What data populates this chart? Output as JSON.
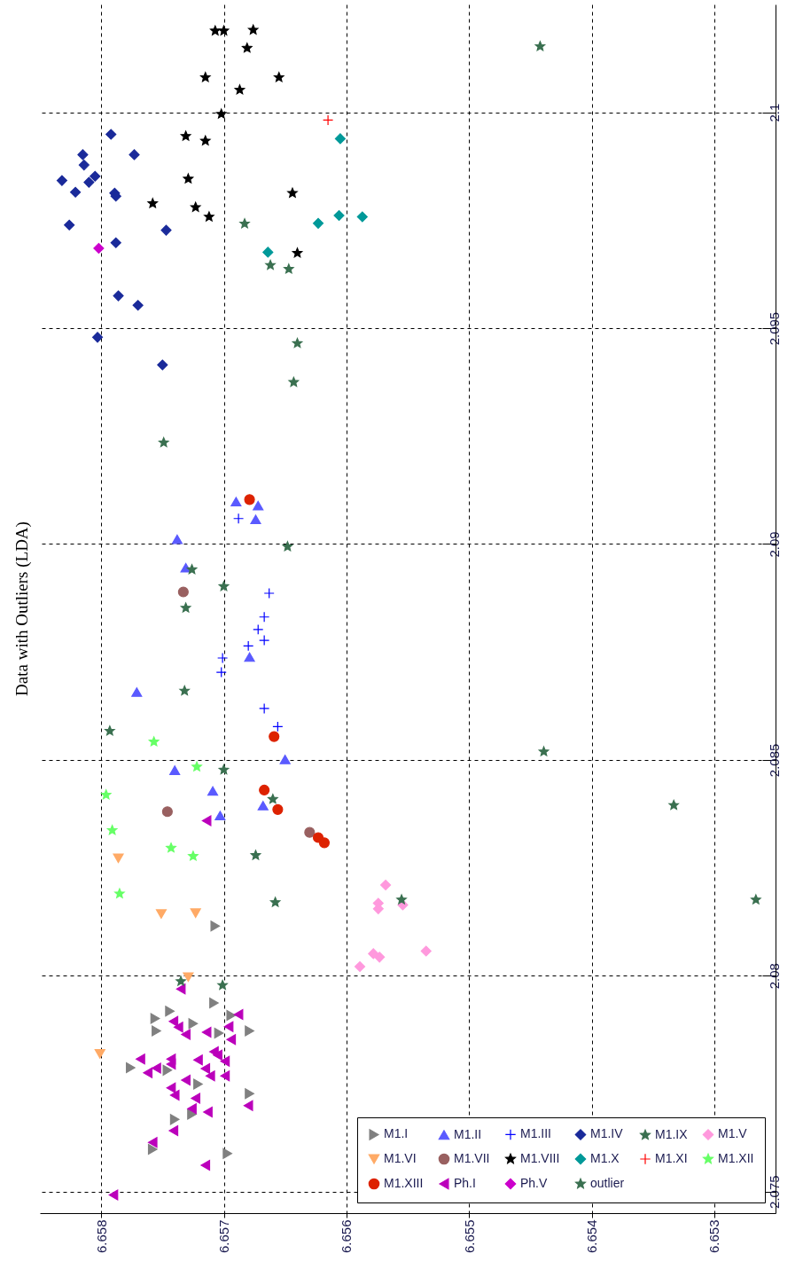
{
  "chart_data": {
    "type": "scatter",
    "title": "Data with Outliers (LDA)",
    "xlim": [
      6.6585,
      6.6525
    ],
    "xticks": [
      6.658,
      6.657,
      6.656,
      6.655,
      6.654,
      6.653
    ],
    "ylim": [
      2.0745,
      2.1025
    ],
    "yticks": [
      2.075,
      2.08,
      2.085,
      2.09,
      2.095,
      2.1
    ],
    "grid": true,
    "legend": "bottom right",
    "series": [
      {
        "name": "M1.I",
        "color": "#808080",
        "marker": "triangle-right",
        "values": [
          2.08115,
          2.07937,
          2.07918,
          2.07901,
          2.07872,
          2.07889,
          2.07908,
          2.07872,
          2.07867,
          2.07787,
          2.07781,
          2.07749,
          2.07727,
          2.07667,
          2.07679,
          2.07598,
          2.07588
        ],
        "x": [
          6.65707,
          6.65708,
          6.65744,
          6.65756,
          6.65755,
          6.65725,
          6.65694,
          6.65679,
          6.65704,
          6.65776,
          6.65746,
          6.65721,
          6.65679,
          6.6574,
          6.65726,
          6.65758,
          6.65697
        ]
      },
      {
        "name": "M1.II",
        "color": "#5a5aff",
        "marker": "triangle",
        "values": [
          2.09098,
          2.09089,
          2.09057,
          2.09011,
          2.08945,
          2.08738,
          2.08657,
          2.08501,
          2.08476,
          2.08428,
          2.08394,
          2.08371
        ],
        "x": [
          6.6569,
          6.65672,
          6.65674,
          6.65738,
          6.65731,
          6.65679,
          6.65771,
          6.6565,
          6.6574,
          6.65709,
          6.65668,
          6.65703
        ]
      },
      {
        "name": "M1.III",
        "color": "#0000ff",
        "marker": "cross",
        "values": [
          2.09059,
          2.08886,
          2.08831,
          2.08802,
          2.08777,
          2.08764,
          2.08736,
          2.08703,
          2.08619,
          2.08577
        ],
        "x": [
          6.65688,
          6.65663,
          6.65667,
          6.65672,
          6.65667,
          6.6568,
          6.65701,
          6.65702,
          6.65667,
          6.65656
        ]
      },
      {
        "name": "M1.IV",
        "color": "#1a2a9a",
        "marker": "diamond",
        "values": [
          2.09949,
          2.09902,
          2.09902,
          2.09878,
          2.09842,
          2.09838,
          2.09852,
          2.09815,
          2.09813,
          2.09806,
          2.09739,
          2.09727,
          2.09698,
          2.09575,
          2.09553,
          2.09479,
          2.09415
        ],
        "x": [
          6.65792,
          6.65815,
          6.65773,
          6.65814,
          6.65832,
          6.6581,
          6.65805,
          6.65821,
          6.65789,
          6.65788,
          6.65826,
          6.65747,
          6.65788,
          6.65786,
          6.6577,
          6.65803,
          6.6575
        ]
      },
      {
        "name": "M1.IX",
        "color": "#3a7050",
        "marker": "star",
        "values": [
          2.09637
        ],
        "x": [
          6.65647
        ]
      },
      {
        "name": "M1.V",
        "color": "#ff99dd",
        "marker": "diamond",
        "values": [
          2.0821,
          2.08168,
          2.08155,
          2.08164,
          2.08051,
          2.08043,
          2.08021,
          2.08057
        ],
        "x": [
          6.65568,
          6.65574,
          6.65574,
          6.65554,
          6.65578,
          6.65573,
          6.65589,
          6.65535
        ]
      },
      {
        "name": "M1.VI",
        "color": "#ffaa66",
        "marker": "triangle-down",
        "values": [
          2.08272,
          2.08143,
          2.08145,
          2.07997,
          2.07819
        ],
        "x": [
          6.65786,
          6.65751,
          6.65723,
          6.65729,
          6.65801
        ]
      },
      {
        "name": "M1.VII",
        "color": "#996060",
        "marker": "circle",
        "values": [
          2.08889,
          2.0838,
          2.08332
        ],
        "x": [
          6.65733,
          6.65746,
          6.6563
        ]
      },
      {
        "name": "M1.VIII",
        "color": "#000000",
        "marker": "star",
        "values": [
          2.10189,
          2.10189,
          2.10191,
          2.10149,
          2.10081,
          2.10081,
          2.10052,
          2.09996,
          2.09945,
          2.09934,
          2.09846,
          2.09813,
          2.09789,
          2.0978,
          2.09758,
          2.09674
        ],
        "x": [
          6.65707,
          6.657,
          6.65676,
          6.65681,
          6.65715,
          6.65655,
          6.65687,
          6.65702,
          6.65731,
          6.65715,
          6.65729,
          6.65644,
          6.65758,
          6.65723,
          6.65712,
          6.6564
        ]
      },
      {
        "name": "M1.X",
        "color": "#009999",
        "marker": "diamond",
        "values": [
          2.09939,
          2.09743,
          2.09761,
          2.09758,
          2.09676
        ],
        "x": [
          6.65605,
          6.65623,
          6.65606,
          6.65587,
          6.65664
        ]
      },
      {
        "name": "M1.XI",
        "color": "#ff0000",
        "marker": "cross",
        "values": [
          2.09982
        ],
        "x": [
          6.65615
        ]
      },
      {
        "name": "M1.XII",
        "color": "#66ff66",
        "marker": "star",
        "values": [
          2.08542,
          2.08484,
          2.08419,
          2.08337,
          2.08296,
          2.08277,
          2.0819
        ],
        "x": [
          6.65757,
          6.65722,
          6.65796,
          6.65791,
          6.65743,
          6.65725,
          6.65785
        ]
      },
      {
        "name": "M1.XIII",
        "color": "#dd2200",
        "marker": "circle",
        "values": [
          2.09103,
          2.08554,
          2.0843,
          2.08385,
          2.0832,
          2.08308
        ],
        "x": [
          6.65679,
          6.65659,
          6.65667,
          6.65656,
          6.65623,
          6.65618
        ]
      },
      {
        "name": "Ph.I",
        "color": "#bb00bb",
        "marker": "triangle-left",
        "values": [
          2.08359,
          2.07969,
          2.0791,
          2.07882,
          2.07869,
          2.07881,
          2.07894,
          2.07864,
          2.07852,
          2.07807,
          2.07807,
          2.07775,
          2.07786,
          2.07805,
          2.07824,
          2.07802,
          2.07785,
          2.07768,
          2.07768,
          2.07758,
          2.0774,
          2.07723,
          2.07716,
          2.07692,
          2.07684,
          2.07699,
          2.07641,
          2.07614,
          2.07561,
          2.07492,
          2.07795,
          2.07816
        ],
        "x": [
          6.65714,
          6.65735,
          6.65688,
          6.65696,
          6.65714,
          6.65737,
          6.65741,
          6.65731,
          6.65694,
          6.65768,
          6.65743,
          6.65762,
          6.65755,
          6.65721,
          6.65708,
          6.65699,
          6.65715,
          6.65711,
          6.65699,
          6.65731,
          6.65743,
          6.6574,
          6.65723,
          6.65726,
          6.65713,
          6.6568,
          6.65741,
          6.65758,
          6.65715,
          6.6579,
          6.65743,
          6.65705
        ]
      },
      {
        "name": "Ph.V",
        "color": "#cc00cc",
        "marker": "diamond",
        "values": [
          2.09685
        ],
        "x": [
          6.65802
        ]
      },
      {
        "name": "outlier",
        "color": "#3a7050",
        "marker": "star",
        "values": [
          2.09742,
          2.09646,
          2.09465,
          2.09375,
          2.10153,
          2.09235,
          2.08994,
          2.08941,
          2.08902,
          2.08852,
          2.0866,
          2.08567,
          2.08477,
          2.08409,
          2.08519,
          2.08395,
          2.08279,
          2.0817,
          2.08176,
          2.07987,
          2.07978,
          2.08176
        ],
        "x": [
          6.65683,
          6.65662,
          6.6564,
          6.65643,
          6.65442,
          6.65749,
          6.65648,
          6.65726,
          6.657,
          6.65731,
          6.65732,
          6.65793,
          6.657,
          6.6566,
          6.65439,
          6.65333,
          6.65674,
          6.65658,
          6.65555,
          6.65735,
          6.65701,
          6.65266
        ]
      }
    ]
  }
}
